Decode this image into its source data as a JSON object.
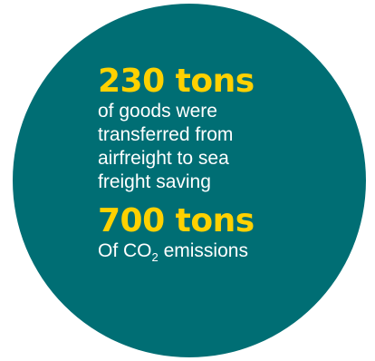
{
  "colors": {
    "circle": "#006e74",
    "accent": "#ffd100",
    "text": "#ffffff",
    "background": "#ffffff"
  },
  "stat1": {
    "value": "230 tons",
    "lines": [
      "of goods were",
      "transferred from",
      "airfreight to sea",
      "freight saving"
    ]
  },
  "stat2": {
    "value": "700 tons",
    "prefix": "Of CO",
    "subscript": "2",
    "suffix": " emissions"
  }
}
